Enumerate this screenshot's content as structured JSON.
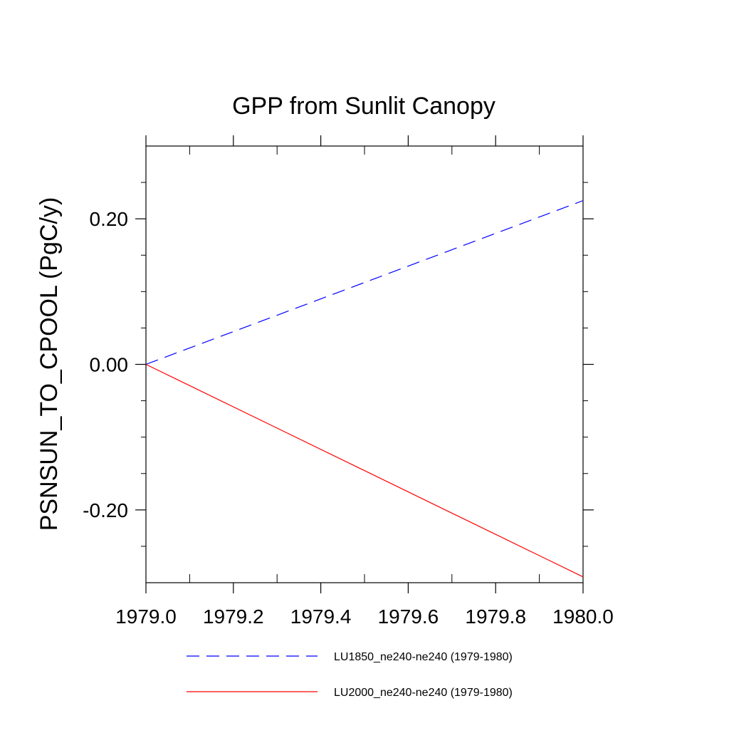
{
  "chart_data": {
    "type": "line",
    "title": "GPP from Sunlit Canopy",
    "xlabel": "",
    "ylabel": "PSNSUN_TO_CPOOL  (PgC/y)",
    "xlim": [
      1979.0,
      1980.0
    ],
    "ylim": [
      -0.3,
      0.3
    ],
    "xticks": [
      {
        "value": 1979.0,
        "label": "1979.0"
      },
      {
        "value": 1979.2,
        "label": "1979.2"
      },
      {
        "value": 1979.4,
        "label": "1979.4"
      },
      {
        "value": 1979.6,
        "label": "1979.6"
      },
      {
        "value": 1979.8,
        "label": "1979.8"
      },
      {
        "value": 1980.0,
        "label": "1980.0"
      }
    ],
    "yticks": [
      {
        "value": 0.2,
        "label": "0.20"
      },
      {
        "value": 0.0,
        "label": "0.00"
      },
      {
        "value": -0.2,
        "label": "-0.20"
      }
    ],
    "x_minor_step": 0.1,
    "y_minor_step": 0.05,
    "grid": false,
    "legend_position": "bottom",
    "series": [
      {
        "name": "LU1850_ne240-ne240 (1979-1980)",
        "color": "#0000ff",
        "style": "dashed",
        "x": [
          1979.0,
          1980.0
        ],
        "y": [
          0.0,
          0.225
        ]
      },
      {
        "name": "LU2000_ne240-ne240 (1979-1980)",
        "color": "#ff0000",
        "style": "solid",
        "x": [
          1979.0,
          1980.0
        ],
        "y": [
          0.0,
          -0.292
        ]
      }
    ]
  }
}
